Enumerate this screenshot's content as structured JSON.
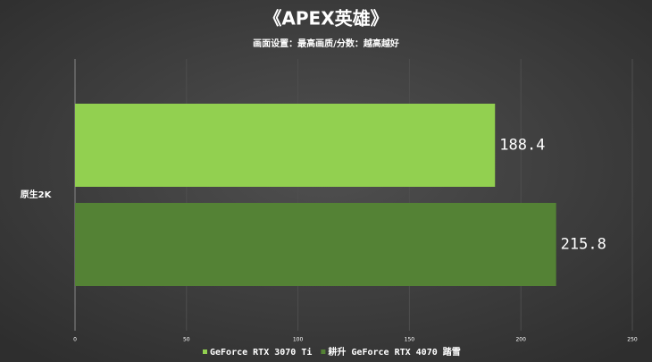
{
  "chart_data": {
    "type": "hbar",
    "title": "《APEX英雄》",
    "subtitle": "画面设置：最高画质/分数：越高越好",
    "categories": [
      "原生2K"
    ],
    "series": [
      {
        "name": "GeForce RTX 3070 Ti",
        "color": "#92d050",
        "values": [
          188.4
        ]
      },
      {
        "name": "耕升 GeForce RTX 4070 踏雪",
        "color": "#548235",
        "values": [
          215.8
        ]
      }
    ],
    "xlim": [
      0,
      250
    ],
    "xticks": [
      0,
      50,
      100,
      150,
      200,
      250
    ],
    "grid": true,
    "legend": "bottom"
  }
}
